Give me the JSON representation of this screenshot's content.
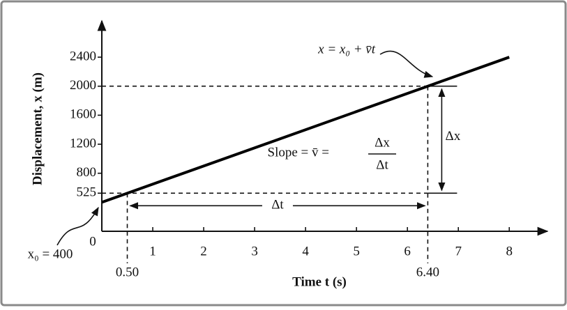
{
  "chart_data": {
    "type": "line",
    "x_label": "Time t (s)",
    "y_label": "Displacement, x (m)",
    "x": [
      0,
      0.5,
      6.4,
      8
    ],
    "series": [
      {
        "name": "x = x₀ + v̄t",
        "color": "#000000",
        "values": [
          400,
          525,
          2000,
          2400
        ]
      }
    ],
    "xlim": [
      0,
      8.75
    ],
    "ylim": [
      0,
      2900
    ],
    "xticks": [
      0,
      1,
      2,
      3,
      4,
      5,
      6,
      7,
      8
    ],
    "yticks": [
      525,
      800,
      1200,
      1600,
      2000,
      2400
    ],
    "marked_x": [
      {
        "value": 0.5,
        "label": "0.50"
      },
      {
        "value": 6.4,
        "label": "6.40"
      }
    ],
    "annotations": {
      "intercept": "x₀ = 400",
      "slope": "Slope = v̄ =",
      "slope_numerator": "Δx",
      "slope_denominator": "Δt",
      "delta_x": "Δx",
      "delta_t": "Δt"
    }
  }
}
